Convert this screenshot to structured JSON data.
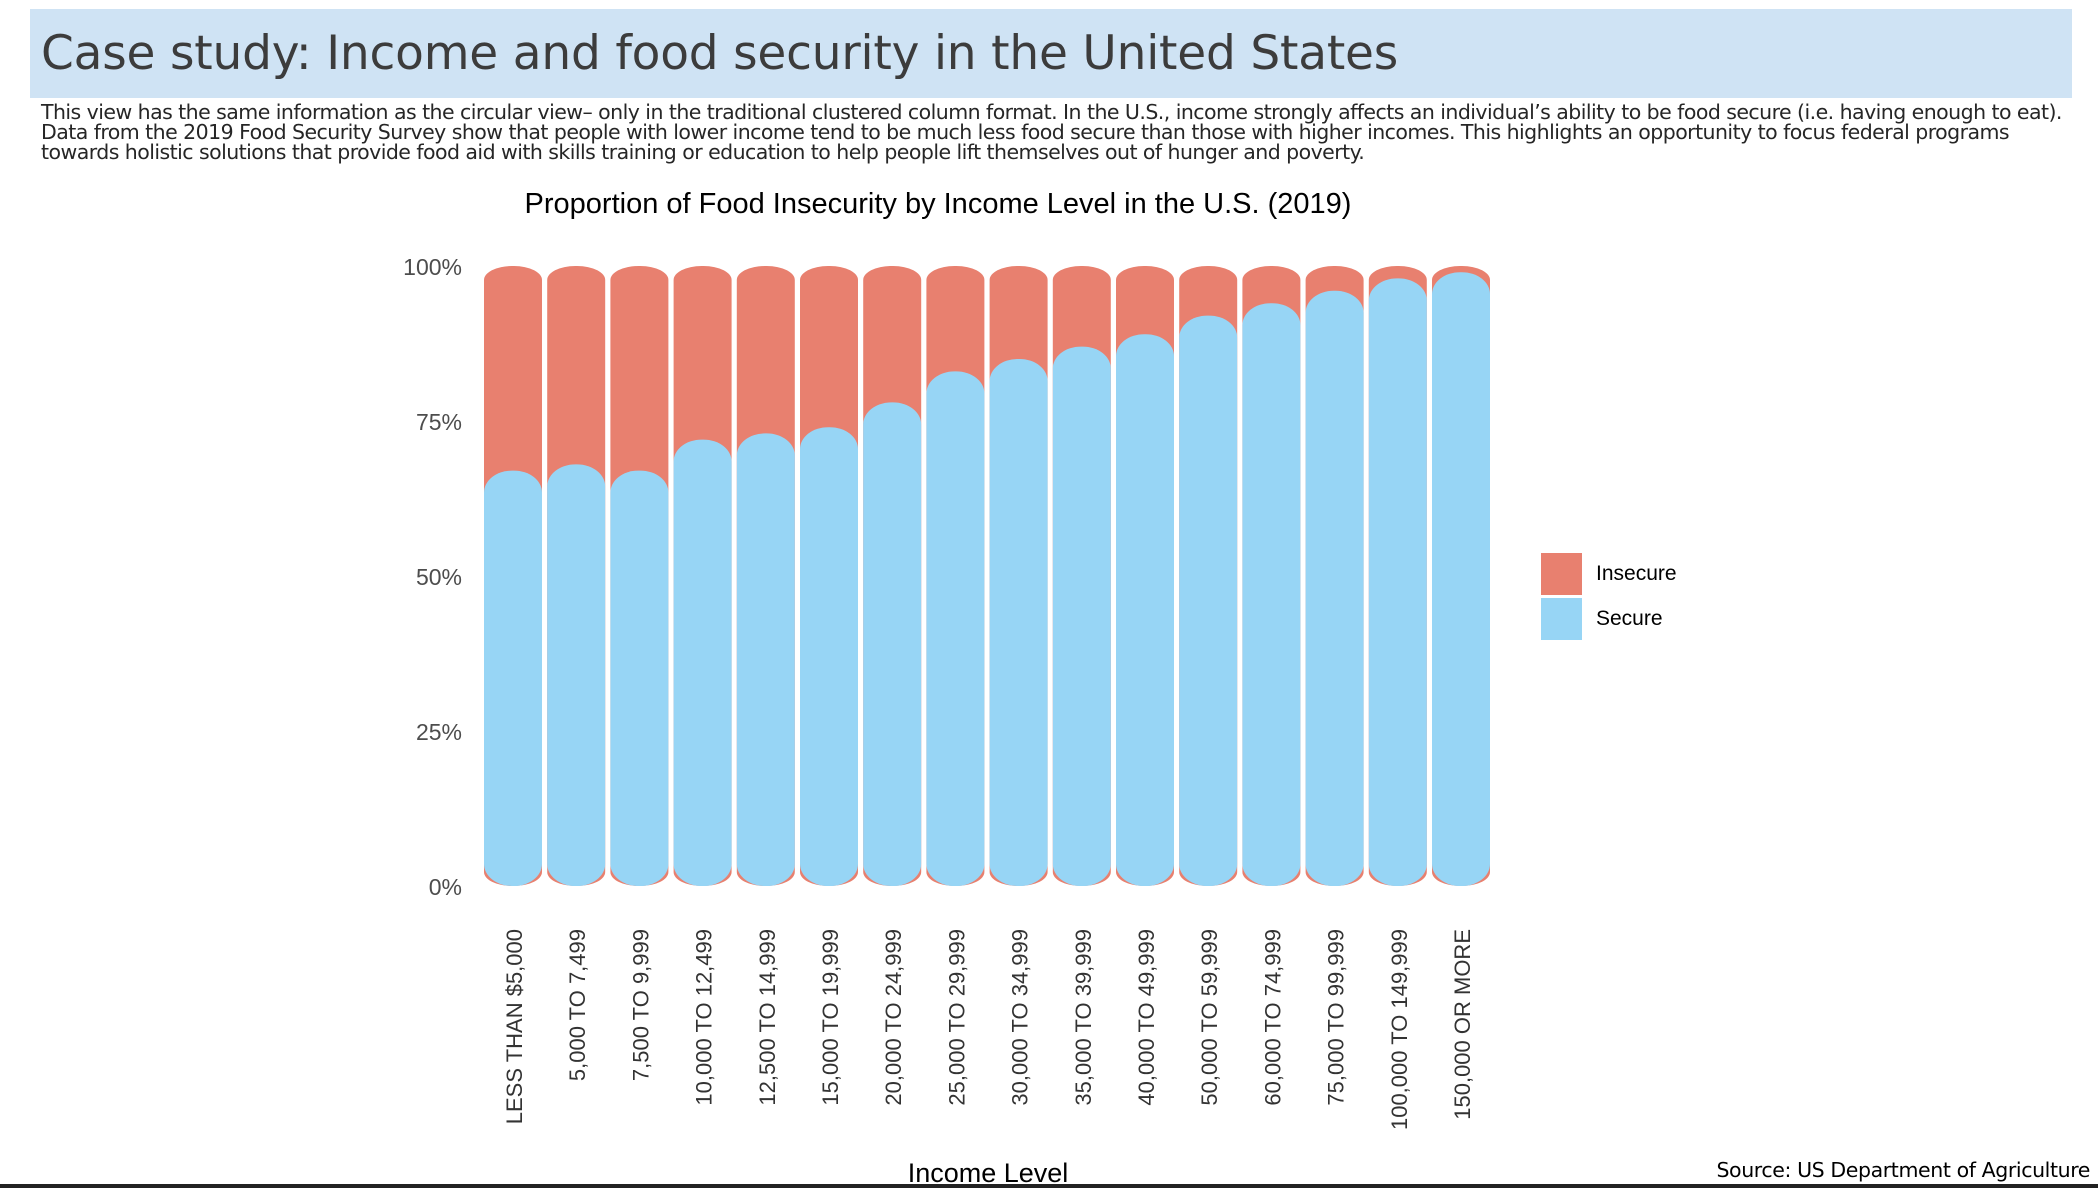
{
  "page": {
    "title": "Case study: Income and food security in the United States",
    "description": "This view has the same information as the circular view– only in the traditional clustered column format. In the U.S., income strongly affects an individual’s ability to be food secure (i.e. having enough to eat). Data from the 2019 Food Security Survey show that people with lower income tend to be much less food secure than those with higher incomes. This highlights an opportunity to focus federal programs towards holistic solutions that provide food aid with skills training or education to help people lift themselves out of hunger and poverty.",
    "source": "Source: US Department of Agriculture"
  },
  "chart_data": {
    "type": "bar",
    "stacked": true,
    "normalized": true,
    "title": "Proportion of Food Insecurity by Income Level in the U.S. (2019)",
    "xlabel": "Income Level",
    "ylabel": "",
    "ylim": [
      0,
      1
    ],
    "yticks": [
      {
        "value": 0,
        "label": "0%"
      },
      {
        "value": 0.25,
        "label": "25%"
      },
      {
        "value": 0.5,
        "label": "50%"
      },
      {
        "value": 0.75,
        "label": "75%"
      },
      {
        "value": 1,
        "label": "100%"
      }
    ],
    "grid": false,
    "legend": {
      "position": "right"
    },
    "categories": [
      "LESS THAN $5,000",
      "5,000 TO 7,499",
      "7,500 TO 9,999",
      "10,000 TO 12,499",
      "12,500 TO 14,999",
      "15,000 TO 19,999",
      "20,000 TO 24,999",
      "25,000 TO 29,999",
      "30,000 TO 34,999",
      "35,000 TO 39,999",
      "40,000 TO 49,999",
      "50,000 TO 59,999",
      "60,000 TO 74,999",
      "75,000 TO 99,999",
      "100,000 TO 149,999",
      "150,000 OR MORE"
    ],
    "series": [
      {
        "name": "Insecure",
        "color": "#e8806f",
        "values": [
          0.33,
          0.32,
          0.33,
          0.28,
          0.27,
          0.26,
          0.22,
          0.17,
          0.15,
          0.13,
          0.11,
          0.08,
          0.06,
          0.04,
          0.02,
          0.01
        ]
      },
      {
        "name": "Secure",
        "color": "#97d5f5",
        "values": [
          0.67,
          0.68,
          0.67,
          0.72,
          0.73,
          0.74,
          0.78,
          0.83,
          0.85,
          0.87,
          0.89,
          0.92,
          0.94,
          0.96,
          0.98,
          0.99
        ]
      }
    ]
  }
}
